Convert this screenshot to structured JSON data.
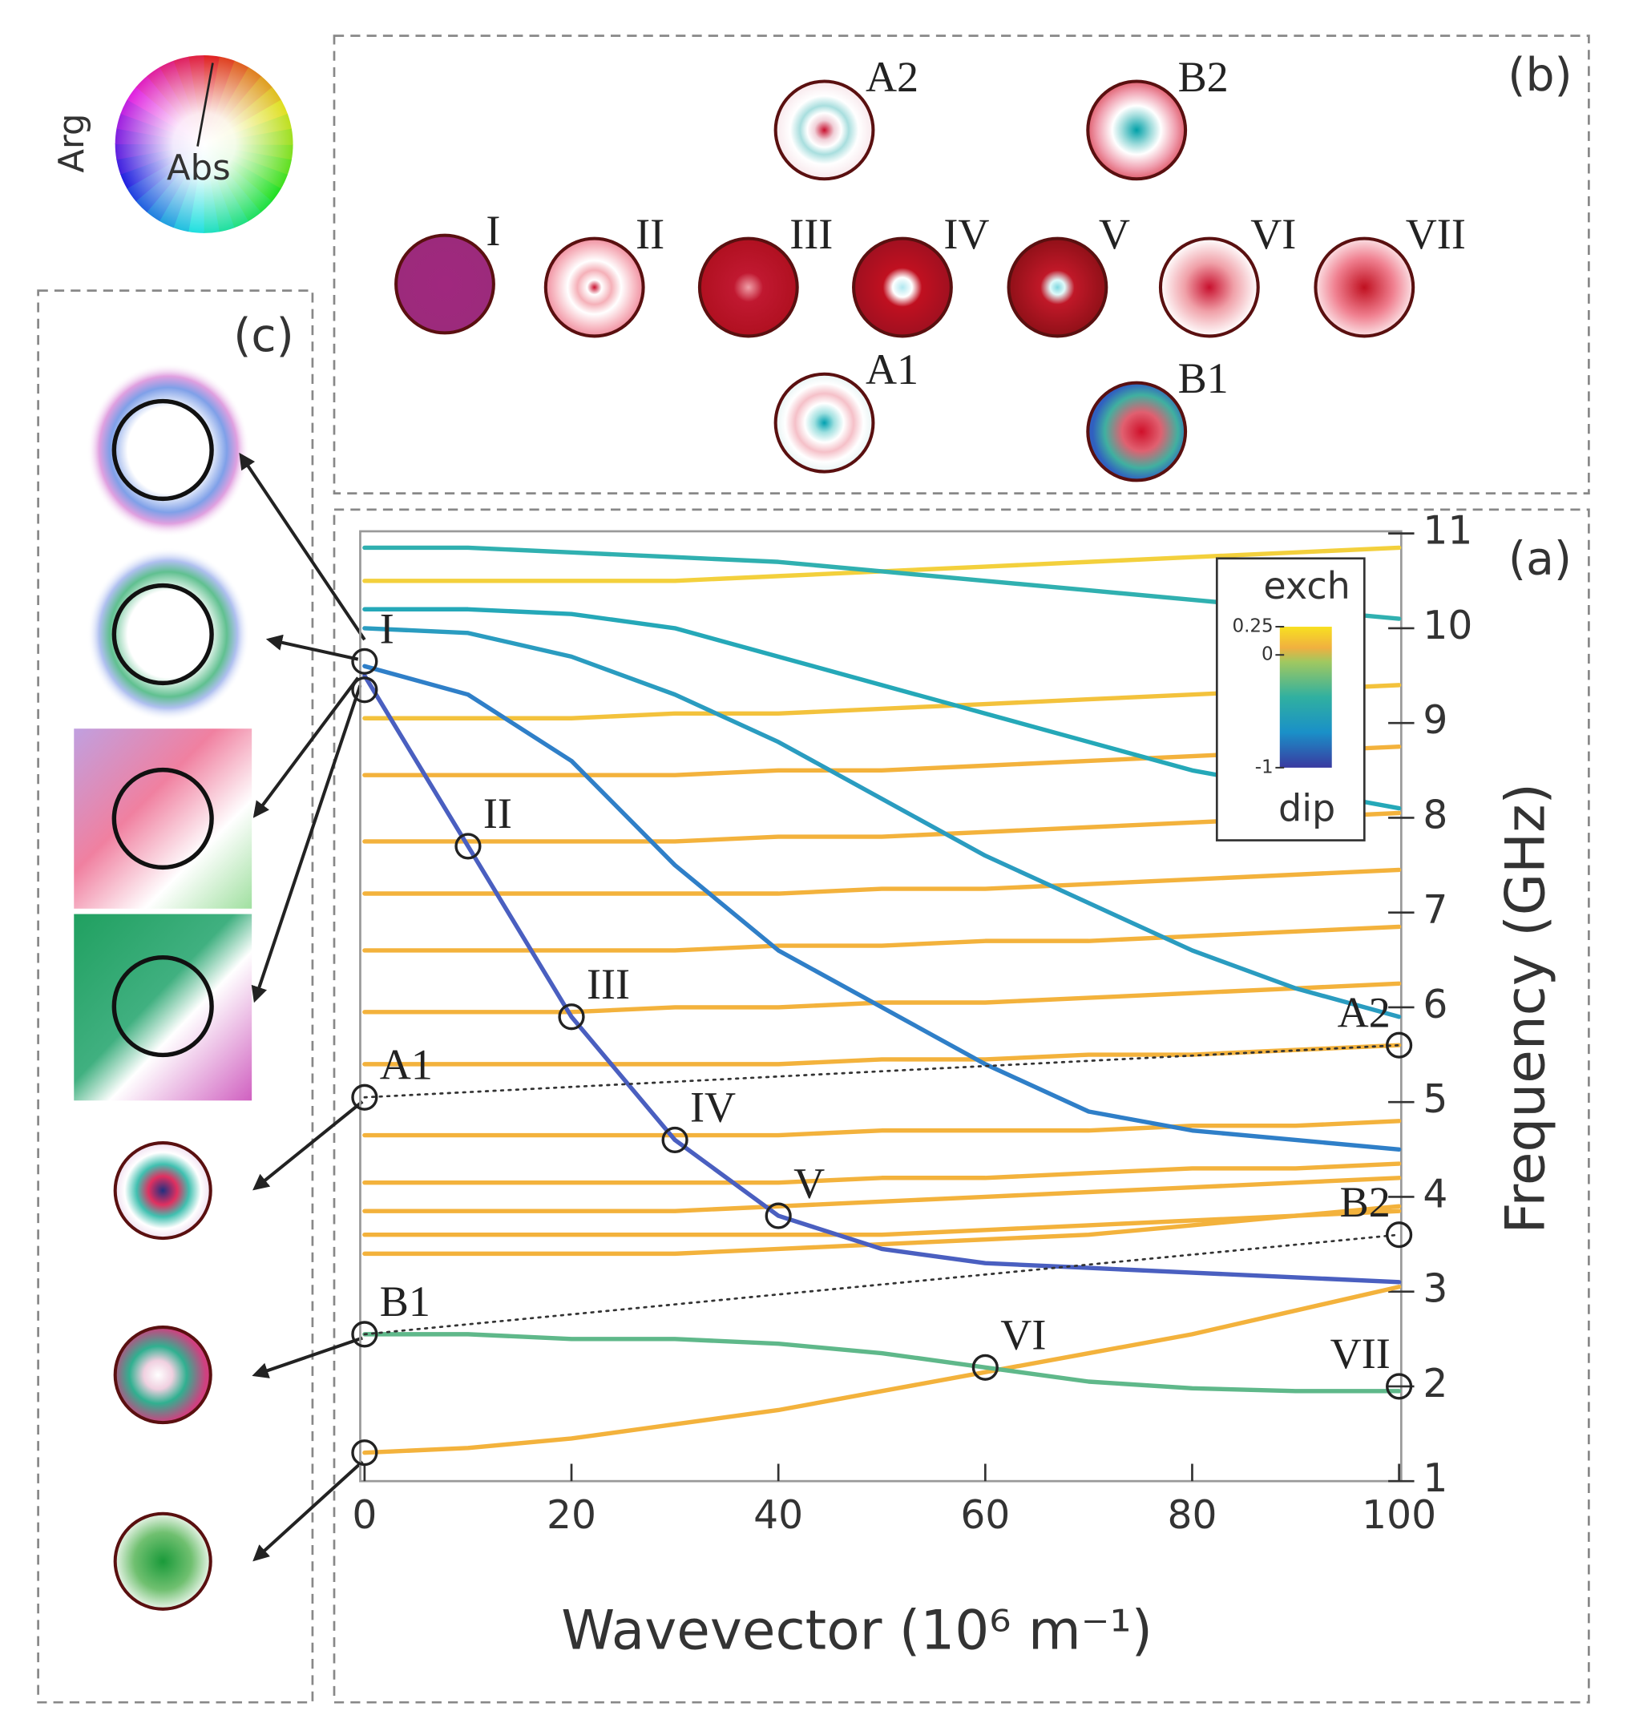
{
  "chart_data": {
    "type": "line",
    "panel_label": "(a)",
    "x_label": "Wavevector (10⁶ m⁻¹)",
    "y_label": "Frequency (GHz)",
    "x": [
      0,
      10,
      20,
      30,
      40,
      50,
      60,
      70,
      80,
      90,
      100
    ],
    "xlim": [
      0,
      100
    ],
    "xticks": [
      0,
      20,
      40,
      60,
      80,
      100
    ],
    "ylim": [
      1,
      11
    ],
    "yticks": [
      1,
      2,
      3,
      4,
      5,
      6,
      7,
      8,
      9,
      10,
      11
    ],
    "series": [
      {
        "color": "#f3b23c",
        "values": [
          3.4,
          3.4,
          3.4,
          3.4,
          3.45,
          3.5,
          3.55,
          3.6,
          3.7,
          3.8,
          3.9
        ]
      },
      {
        "color": "#f3b23c",
        "values": [
          3.6,
          3.6,
          3.6,
          3.6,
          3.6,
          3.6,
          3.65,
          3.7,
          3.75,
          3.8,
          3.85
        ]
      },
      {
        "color": "#f3b23c",
        "values": [
          3.85,
          3.85,
          3.85,
          3.85,
          3.9,
          3.95,
          4.0,
          4.05,
          4.1,
          4.15,
          4.2
        ]
      },
      {
        "color": "#f3b23c",
        "values": [
          4.15,
          4.15,
          4.15,
          4.15,
          4.15,
          4.2,
          4.2,
          4.25,
          4.3,
          4.3,
          4.35
        ]
      },
      {
        "color": "#f3b23c",
        "values": [
          4.65,
          4.65,
          4.65,
          4.65,
          4.65,
          4.7,
          4.7,
          4.7,
          4.75,
          4.75,
          4.8
        ]
      },
      {
        "color": "#f3b23c",
        "values": [
          5.4,
          5.4,
          5.4,
          5.4,
          5.4,
          5.45,
          5.45,
          5.5,
          5.5,
          5.55,
          5.6
        ]
      },
      {
        "color": "#f3b23c",
        "values": [
          5.95,
          5.95,
          5.95,
          6.0,
          6.0,
          6.05,
          6.05,
          6.1,
          6.15,
          6.2,
          6.25
        ]
      },
      {
        "color": "#f3b23c",
        "values": [
          6.6,
          6.6,
          6.6,
          6.6,
          6.65,
          6.65,
          6.7,
          6.7,
          6.75,
          6.8,
          6.85
        ]
      },
      {
        "color": "#f3b23c",
        "values": [
          7.2,
          7.2,
          7.2,
          7.2,
          7.2,
          7.25,
          7.25,
          7.3,
          7.35,
          7.4,
          7.45
        ]
      },
      {
        "color": "#f3b23c",
        "values": [
          7.75,
          7.75,
          7.75,
          7.75,
          7.8,
          7.8,
          7.85,
          7.9,
          7.95,
          8.0,
          8.05
        ]
      },
      {
        "color": "#f3b23c",
        "values": [
          8.45,
          8.45,
          8.45,
          8.45,
          8.5,
          8.5,
          8.55,
          8.6,
          8.65,
          8.7,
          8.75
        ]
      },
      {
        "color": "#f3c23c",
        "values": [
          9.05,
          9.05,
          9.05,
          9.1,
          9.1,
          9.15,
          9.2,
          9.25,
          9.3,
          9.35,
          9.4
        ]
      },
      {
        "color": "#f3d03c",
        "values": [
          10.5,
          10.5,
          10.5,
          10.5,
          10.55,
          10.6,
          10.65,
          10.7,
          10.75,
          10.8,
          10.85
        ]
      },
      {
        "color": "#f3b23c",
        "values": [
          1.3,
          1.35,
          1.45,
          1.6,
          1.75,
          1.95,
          2.15,
          2.35,
          2.55,
          2.8,
          3.05
        ]
      },
      {
        "color": "#5fb88a",
        "values": [
          2.55,
          2.55,
          2.5,
          2.5,
          2.45,
          2.35,
          2.2,
          2.05,
          1.98,
          1.95,
          1.95
        ]
      },
      {
        "color": "#30b0b0",
        "values": [
          10.85,
          10.85,
          10.8,
          10.75,
          10.7,
          10.6,
          10.5,
          10.4,
          10.3,
          10.2,
          10.1
        ]
      },
      {
        "color": "#25a8b8",
        "values": [
          10.2,
          10.2,
          10.15,
          10.0,
          9.7,
          9.4,
          9.1,
          8.8,
          8.5,
          8.3,
          8.1
        ]
      },
      {
        "color": "#2a9cc0",
        "values": [
          10.0,
          9.95,
          9.7,
          9.3,
          8.8,
          8.2,
          7.6,
          7.1,
          6.6,
          6.2,
          5.9
        ]
      },
      {
        "color": "#2f7fc8",
        "values": [
          9.6,
          9.3,
          8.6,
          7.5,
          6.6,
          6.0,
          5.4,
          4.9,
          4.7,
          4.6,
          4.5
        ]
      },
      {
        "color": "#4a5fc0",
        "values": [
          9.5,
          7.7,
          5.9,
          4.6,
          3.8,
          3.45,
          3.3,
          3.25,
          3.2,
          3.15,
          3.1
        ]
      },
      {
        "color": "#333333",
        "dash": true,
        "x": [
          0,
          100
        ],
        "values": [
          5.05,
          5.6
        ]
      },
      {
        "color": "#333333",
        "dash": true,
        "x": [
          0,
          100
        ],
        "values": [
          2.55,
          3.6
        ]
      }
    ],
    "markers": [
      {
        "label": "I",
        "x": 0,
        "y": 9.65
      },
      {
        "x": 0,
        "y": 9.35
      },
      {
        "label": "II",
        "x": 10,
        "y": 7.7
      },
      {
        "label": "III",
        "x": 20,
        "y": 5.9
      },
      {
        "label": "IV",
        "x": 30,
        "y": 4.6
      },
      {
        "label": "V",
        "x": 40,
        "y": 3.8
      },
      {
        "label": "VI",
        "x": 60,
        "y": 2.2
      },
      {
        "label": "VII",
        "x": 100,
        "y": 2.0
      },
      {
        "label": "A1",
        "x": 0,
        "y": 5.05
      },
      {
        "label": "A2",
        "x": 100,
        "y": 5.6
      },
      {
        "label": "B1",
        "x": 0,
        "y": 2.55
      },
      {
        "label": "B2",
        "x": 100,
        "y": 3.6
      },
      {
        "x": 0,
        "y": 1.3
      }
    ],
    "colorbar": {
      "top": "exch",
      "bottom": "dip",
      "lim": [
        -1,
        0.25
      ],
      "ticks": [
        -1,
        0,
        0.25
      ]
    }
  },
  "panel_b": {
    "label": "(b)",
    "modes": [
      {
        "label": "A2"
      },
      {
        "label": "B2"
      },
      {
        "label": "I"
      },
      {
        "label": "II"
      },
      {
        "label": "III"
      },
      {
        "label": "IV"
      },
      {
        "label": "V"
      },
      {
        "label": "VI"
      },
      {
        "label": "VII"
      },
      {
        "label": "A1"
      },
      {
        "label": "B1"
      }
    ]
  },
  "panel_c": {
    "label": "(c)"
  },
  "color_wheel": {
    "arg": "Arg",
    "abs": "Abs"
  }
}
